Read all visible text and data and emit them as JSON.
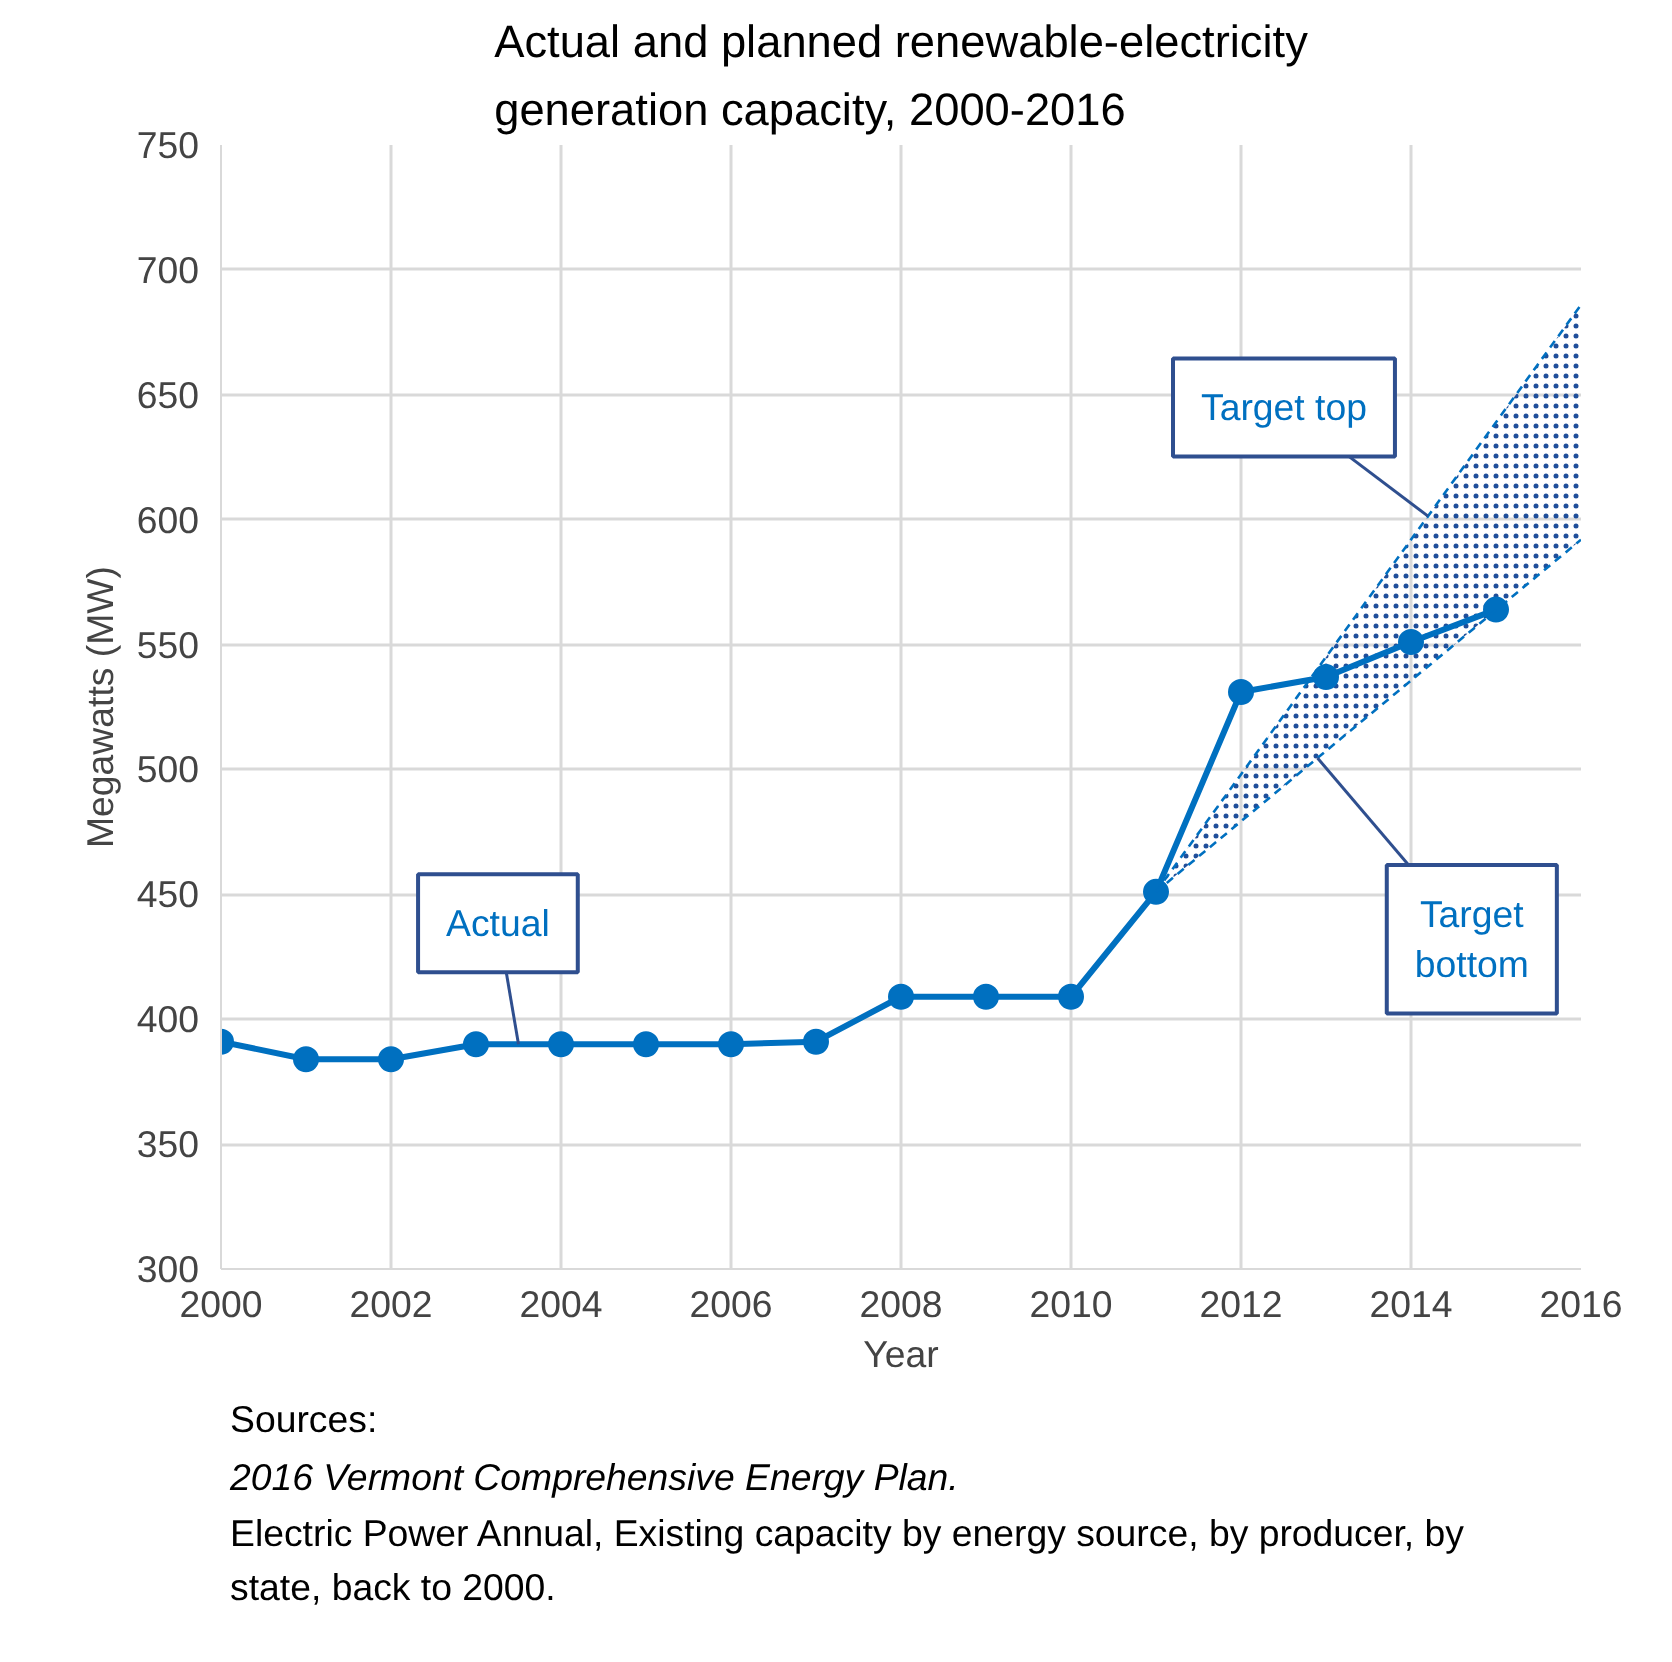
{
  "chart_data": {
    "type": "line",
    "title": "Actual and planned renewable-electricity generation capacity, 2000-2016",
    "xlabel": "Year",
    "ylabel": "Megawatts (MW)",
    "xlim": [
      2000,
      2016
    ],
    "xticks": [
      2000,
      2002,
      2004,
      2006,
      2008,
      2010,
      2012,
      2014,
      2016
    ],
    "ylim": [
      300,
      750
    ],
    "yticks": [
      300,
      350,
      400,
      450,
      500,
      550,
      600,
      650,
      700,
      750
    ],
    "grid": true,
    "series": [
      {
        "name": "Actual",
        "color": "#0070c0",
        "marker": "circle",
        "line_style": "solid",
        "x": [
          2000,
          2001,
          2002,
          2003,
          2004,
          2005,
          2006,
          2007,
          2008,
          2009,
          2010,
          2011,
          2012,
          2013,
          2014,
          2015
        ],
        "values": [
          391,
          384,
          384,
          390,
          390,
          390,
          390,
          391,
          409,
          409,
          409,
          451,
          531,
          537,
          551,
          564
        ]
      },
      {
        "name": "Target top",
        "color": "#0070c0",
        "marker": "none",
        "line_style": "dashed",
        "x": [
          2011,
          2016
        ],
        "values": [
          451,
          686
        ]
      },
      {
        "name": "Target bottom",
        "color": "#0070c0",
        "marker": "none",
        "line_style": "dashed",
        "x": [
          2011,
          2016
        ],
        "values": [
          451,
          592
        ],
        "lower": [
          451,
          592
        ],
        "upper": [
          451,
          686
        ]
      }
    ],
    "annotations": [
      "Sources:",
      "2016 Vermont Comprehensive Energy Plan.",
      "Electric Power Annual, Existing capacity by energy source, by producer, by state, back to 2000."
    ]
  }
}
